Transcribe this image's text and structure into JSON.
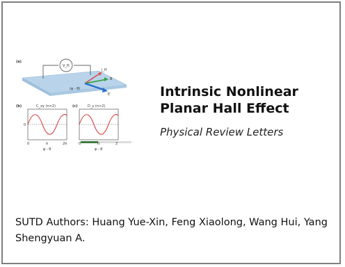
{
  "figure": {
    "panel_a_label": "(a)",
    "panel_b_label": "(b)",
    "panel_c_label": "(c)",
    "voltmeter_label": "V_H",
    "angle_label": "(φ - θ)",
    "vector_labels": [
      "j_H",
      "B",
      "E"
    ],
    "panel_b_title": "C_xy (n>2)",
    "panel_c_title": "D_y (n>2)",
    "panel_b_ylabel": "0",
    "panel_b_xticks": [
      "0",
      "π",
      "2π"
    ],
    "panel_b_xlabel": "φ - θ",
    "panel_c_xticks": [
      "0",
      "π",
      "2"
    ],
    "panel_c_xlabel": "φ - θ",
    "colors": {
      "plate": "#b9d4ea",
      "curve": "#d64545",
      "vector_j": "#d94b4b",
      "vector_b": "#3aa34a",
      "vector_e": "#2a6fc9",
      "green_bar": "#3e7d3e"
    }
  },
  "title": "Intrinsic Nonlinear Planar Hall Effect",
  "journal": "Physical Review Letters",
  "authors": "SUTD Authors: Huang Yue-Xin, Feng Xiaolong, Wang Hui, Yang Shengyuan A."
}
